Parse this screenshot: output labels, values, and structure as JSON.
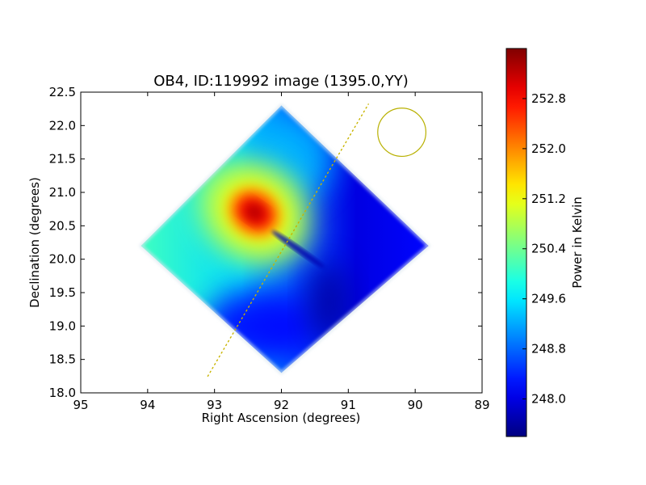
{
  "chart_data": {
    "type": "heatmap",
    "title": "OB4, ID:119992 image (1395.0,YY)",
    "xlabel": "Right Ascension (degrees)",
    "ylabel": "Declination (degrees)",
    "xlim": [
      95,
      89
    ],
    "ylim": [
      18.0,
      22.5
    ],
    "x_ticks": [
      "95",
      "94",
      "93",
      "92",
      "91",
      "90",
      "89"
    ],
    "y_ticks": [
      "18.0",
      "18.5",
      "19.0",
      "19.5",
      "20.0",
      "20.5",
      "21.0",
      "21.5",
      "22.0",
      "22.5"
    ],
    "colorbar": {
      "label": "Power in Kelvin",
      "range": [
        247.4,
        253.6
      ],
      "ticks": [
        "248.0",
        "248.8",
        "249.6",
        "250.4",
        "251.2",
        "252.0",
        "252.8"
      ],
      "colormap": "jet"
    },
    "field_of_view": {
      "shape": "diamond",
      "vertices": [
        [
          92.0,
          22.3
        ],
        [
          89.8,
          20.2
        ],
        [
          92.0,
          18.3
        ],
        [
          94.1,
          20.2
        ]
      ]
    },
    "peak": {
      "ra": 92.4,
      "dec": 20.7,
      "value": 253.4
    },
    "secondary_lows": [
      {
        "ra": 91.3,
        "dec": 19.35,
        "value": 247.6
      }
    ],
    "background": {
      "west_value": 250.1,
      "east_value": 248.0
    },
    "dotted_line": {
      "from": [
        93.1,
        18.25
      ],
      "to": [
        90.7,
        22.32
      ],
      "color": "#c8b400"
    },
    "beam_circle": {
      "ra": 90.2,
      "dec": 21.9,
      "radius_deg": 0.36,
      "color": "#b8b000"
    }
  }
}
